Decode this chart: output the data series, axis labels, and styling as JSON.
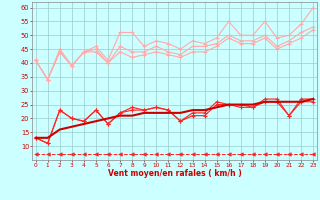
{
  "x": [
    0,
    1,
    2,
    3,
    4,
    5,
    6,
    7,
    8,
    9,
    10,
    11,
    12,
    13,
    14,
    15,
    16,
    17,
    18,
    19,
    20,
    21,
    22,
    23
  ],
  "series": [
    {
      "name": "gust_top",
      "color": "#ffaaaa",
      "lw": 0.8,
      "marker": "+",
      "ms": 3,
      "mew": 0.8,
      "linestyle": "-",
      "y": [
        41,
        34,
        45,
        39,
        44,
        46,
        41,
        51,
        51,
        46,
        48,
        47,
        45,
        48,
        47,
        49,
        55,
        50,
        50,
        55,
        49,
        50,
        54,
        60
      ]
    },
    {
      "name": "gust_mid1",
      "color": "#ffaaaa",
      "lw": 0.8,
      "marker": "+",
      "ms": 3,
      "mew": 0.8,
      "linestyle": "-",
      "y": [
        41,
        34,
        44,
        39,
        44,
        45,
        40,
        46,
        44,
        44,
        46,
        44,
        43,
        46,
        46,
        47,
        50,
        48,
        48,
        50,
        46,
        48,
        51,
        53
      ]
    },
    {
      "name": "mean_light",
      "color": "#ffaaaa",
      "lw": 0.8,
      "marker": "+",
      "ms": 3,
      "mew": 0.8,
      "linestyle": "-",
      "y": [
        41,
        34,
        44,
        39,
        44,
        44,
        40,
        44,
        42,
        43,
        44,
        43,
        42,
        44,
        44,
        46,
        49,
        47,
        47,
        49,
        45,
        47,
        49,
        52
      ]
    },
    {
      "name": "gust_dark",
      "color": "#ff2222",
      "lw": 0.8,
      "marker": "+",
      "ms": 3,
      "mew": 0.8,
      "linestyle": "-",
      "y": [
        13,
        11,
        23,
        20,
        19,
        23,
        18,
        22,
        24,
        23,
        24,
        23,
        19,
        22,
        22,
        26,
        25,
        25,
        24,
        27,
        27,
        21,
        27,
        27
      ]
    },
    {
      "name": "mean_dark",
      "color": "#ff2222",
      "lw": 0.8,
      "marker": "+",
      "ms": 3,
      "mew": 0.8,
      "linestyle": "-",
      "y": [
        13,
        11,
        23,
        20,
        19,
        23,
        18,
        22,
        23,
        23,
        24,
        23,
        19,
        21,
        21,
        25,
        25,
        24,
        24,
        26,
        26,
        21,
        26,
        26
      ]
    },
    {
      "name": "mean_trend",
      "color": "#cc0000",
      "lw": 1.5,
      "marker": null,
      "ms": 0,
      "mew": 0,
      "linestyle": "-",
      "y": [
        13,
        13,
        16,
        17,
        18,
        19,
        20,
        21,
        21,
        22,
        22,
        22,
        22,
        23,
        23,
        24,
        25,
        25,
        25,
        26,
        26,
        26,
        26,
        27
      ]
    },
    {
      "name": "ref_dashed",
      "color": "#ff2222",
      "lw": 0.7,
      "marker": "<",
      "ms": 2.5,
      "mew": 0.5,
      "linestyle": "--",
      "y": [
        7,
        7,
        7,
        7,
        7,
        7,
        7,
        7,
        7,
        7,
        7,
        7,
        7,
        7,
        7,
        7,
        7,
        7,
        7,
        7,
        7,
        7,
        7,
        7
      ]
    }
  ],
  "xlim": [
    -0.3,
    23.3
  ],
  "ylim": [
    5,
    62
  ],
  "yticks": [
    10,
    15,
    20,
    25,
    30,
    35,
    40,
    45,
    50,
    55,
    60
  ],
  "xticks": [
    0,
    1,
    2,
    3,
    4,
    5,
    6,
    7,
    8,
    9,
    10,
    11,
    12,
    13,
    14,
    15,
    16,
    17,
    18,
    19,
    20,
    21,
    22,
    23
  ],
  "xlabel": "Vent moyen/en rafales ( km/h )",
  "xlabel_color": "#cc0000",
  "background_color": "#ccffff",
  "grid_color": "#99cccc",
  "tick_color": "#cc0000",
  "axis_color": "#888888"
}
